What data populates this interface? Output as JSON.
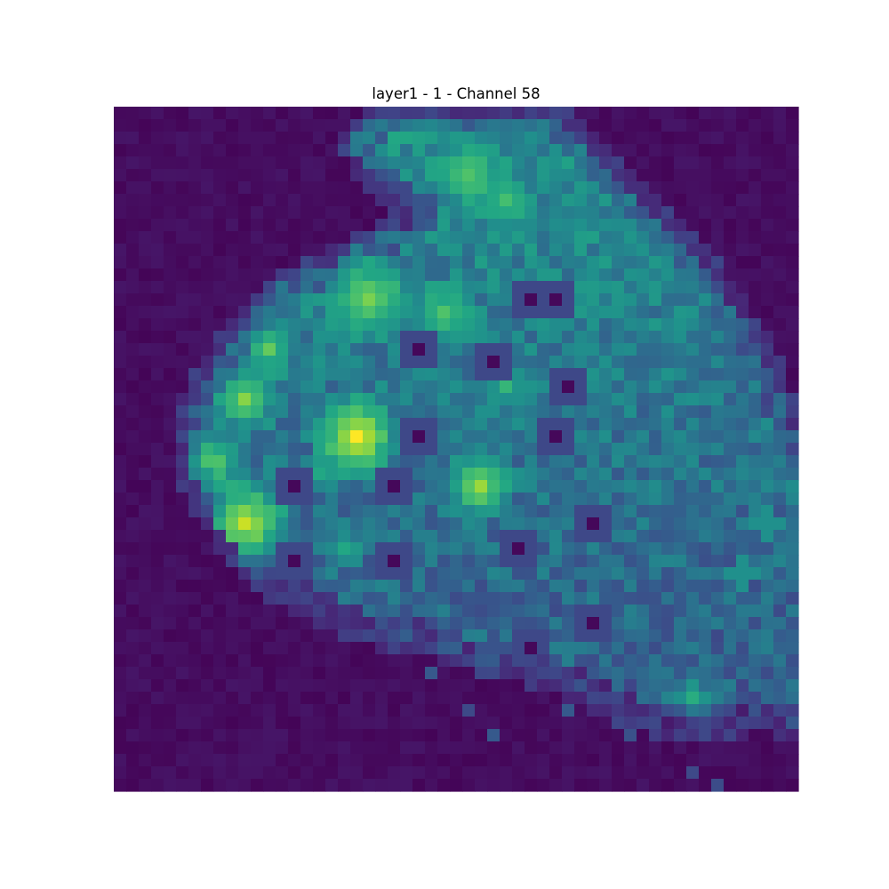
{
  "chart_data": {
    "type": "heatmap",
    "title": "layer1 - 1 - Channel 58",
    "xlabel": "",
    "ylabel": "",
    "axes_visible": false,
    "grid": false,
    "colormap": "viridis",
    "grid_size": [
      55,
      55
    ],
    "value_range": [
      0,
      1
    ],
    "region_description_note": "",
    "regions": {
      "polygon": [
        [
          21,
          1
        ],
        [
          36,
          1
        ],
        [
          38,
          3
        ],
        [
          44,
          9
        ],
        [
          47,
          12
        ],
        [
          51,
          18
        ],
        [
          53,
          22
        ],
        [
          55,
          27
        ],
        [
          57,
          33
        ],
        [
          59,
          39
        ],
        [
          64,
          36
        ],
        [
          67,
          39
        ],
        [
          65,
          43
        ],
        [
          61,
          45
        ],
        [
          58,
          48
        ],
        [
          56,
          50
        ],
        [
          52,
          49
        ],
        [
          47,
          50
        ],
        [
          42,
          49
        ],
        [
          38,
          47
        ],
        [
          35,
          46
        ],
        [
          32,
          45
        ],
        [
          28,
          44
        ],
        [
          25,
          43
        ],
        [
          20,
          42
        ],
        [
          16,
          40
        ],
        [
          12,
          38
        ],
        [
          10,
          36
        ],
        [
          8,
          33
        ],
        [
          6,
          29
        ],
        [
          6,
          25
        ],
        [
          8,
          21
        ],
        [
          11,
          17
        ],
        [
          14,
          14
        ],
        [
          17,
          13
        ],
        [
          20,
          11
        ],
        [
          23,
          10
        ],
        [
          25,
          9
        ],
        [
          21,
          6
        ],
        [
          19,
          3
        ]
      ],
      "background_level": 0.01,
      "body_level": 0.38,
      "hot_spots": [
        {
          "x": 19,
          "y": 26,
          "v": 1.0,
          "r": 1.8
        },
        {
          "x": 10,
          "y": 33,
          "v": 0.92,
          "r": 2.0
        },
        {
          "x": 7.5,
          "y": 28,
          "v": 0.78,
          "r": 1.3
        },
        {
          "x": 10,
          "y": 23,
          "v": 0.82,
          "r": 1.4
        },
        {
          "x": 12,
          "y": 19,
          "v": 0.76,
          "r": 1.2
        },
        {
          "x": 20,
          "y": 15,
          "v": 0.8,
          "r": 1.8
        },
        {
          "x": 26,
          "y": 16,
          "v": 0.72,
          "r": 1.3
        },
        {
          "x": 29,
          "y": 30,
          "v": 0.85,
          "r": 1.5
        },
        {
          "x": 28,
          "y": 5,
          "v": 0.72,
          "r": 1.5
        },
        {
          "x": 31,
          "y": 7,
          "v": 0.7,
          "r": 1.2
        },
        {
          "x": 18,
          "y": 35,
          "v": 0.6,
          "r": 1.0
        },
        {
          "x": 31,
          "y": 22,
          "v": 0.66,
          "r": 1.0
        },
        {
          "x": 46,
          "y": 47,
          "v": 0.62,
          "r": 1.0
        },
        {
          "x": 16,
          "y": 29,
          "v": 0.6,
          "r": 1.0
        }
      ],
      "cold_spots": [
        {
          "x": 22,
          "y": 7
        },
        {
          "x": 33,
          "y": 15
        },
        {
          "x": 35,
          "y": 15
        },
        {
          "x": 24,
          "y": 19
        },
        {
          "x": 30,
          "y": 20
        },
        {
          "x": 36,
          "y": 22
        },
        {
          "x": 24,
          "y": 26
        },
        {
          "x": 35,
          "y": 26
        },
        {
          "x": 14,
          "y": 30
        },
        {
          "x": 22,
          "y": 30
        },
        {
          "x": 38,
          "y": 33
        },
        {
          "x": 32,
          "y": 35
        },
        {
          "x": 22,
          "y": 36
        },
        {
          "x": 14,
          "y": 36
        },
        {
          "x": 33,
          "y": 43
        },
        {
          "x": 38,
          "y": 41
        }
      ],
      "edge_features": [
        {
          "x": 52,
          "y": 33,
          "v": 0.5,
          "r": 1.2
        },
        {
          "x": 50,
          "y": 37,
          "v": 0.5,
          "r": 1.2
        },
        {
          "x": 44,
          "y": 47,
          "v": 0.45,
          "r": 1.0
        },
        {
          "x": 58,
          "y": 42,
          "v": 0.4,
          "r": 1.0
        }
      ],
      "faint_marks": [
        {
          "x": 25,
          "y": 45
        },
        {
          "x": 28,
          "y": 48
        },
        {
          "x": 30,
          "y": 50
        },
        {
          "x": 46,
          "y": 53
        },
        {
          "x": 48,
          "y": 54
        },
        {
          "x": 41,
          "y": 50
        },
        {
          "x": 36,
          "y": 48
        },
        {
          "x": 29,
          "y": 44
        }
      ]
    }
  }
}
